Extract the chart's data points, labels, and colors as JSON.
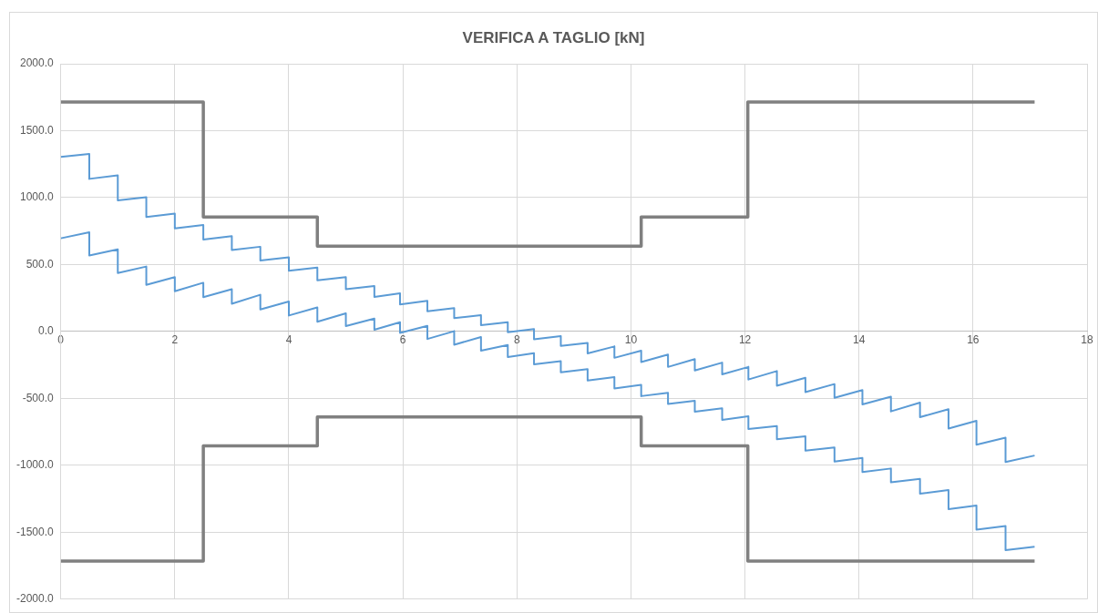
{
  "chart_data": {
    "type": "line",
    "title": "VERIFICA A TAGLIO [kN]",
    "marker": "none",
    "line_style": "solid",
    "grid": true,
    "legend": false,
    "xlim": [
      0,
      18
    ],
    "xticks": [
      0,
      2,
      4,
      6,
      8,
      10,
      12,
      14,
      16,
      18
    ],
    "ylim": [
      -2000,
      2000
    ],
    "yticks": [
      {
        "value": -2000,
        "label": "-2000.0"
      },
      {
        "value": -1500,
        "label": "-1500.0"
      },
      {
        "value": -1000,
        "label": "-1000.0"
      },
      {
        "value": -500,
        "label": "-500.0"
      },
      {
        "value": 0,
        "label": "0.0"
      },
      {
        "value": 500,
        "label": "500.0"
      },
      {
        "value": 1000,
        "label": "1000.0"
      },
      {
        "value": 1500,
        "label": "1500.0"
      },
      {
        "value": 2000,
        "label": "2000.0"
      }
    ],
    "series": [
      {
        "color": "#5b9bd5",
        "x": [
          0,
          0.5,
          0.5,
          1,
          1,
          1.5,
          1.5,
          2,
          2,
          2.5,
          2.5,
          3,
          3,
          3.5,
          3.5,
          4,
          4,
          4.5,
          4.5,
          5,
          5,
          5.5,
          5.5,
          5.95,
          5.95,
          6.43,
          6.43,
          6.9,
          6.9,
          7.37,
          7.37,
          7.84,
          7.84,
          8.3,
          8.3,
          8.77,
          8.77,
          9.24,
          9.24,
          9.71,
          9.71,
          10.18,
          10.18,
          10.65,
          10.65,
          11.12,
          11.12,
          11.6,
          11.6,
          12.06,
          12.06,
          12.56,
          12.56,
          13.06,
          13.06,
          13.57,
          13.57,
          14.06,
          14.06,
          14.56,
          14.56,
          15.07,
          15.07,
          15.57,
          15.57,
          16.06,
          16.06,
          16.57,
          16.57,
          17.08
        ],
        "values": [
          1304,
          1327,
          1140,
          1167,
          979,
          1003,
          855,
          880,
          770,
          795,
          687,
          712,
          608,
          633,
          530,
          554,
          453,
          478,
          382,
          406,
          316,
          339,
          258,
          285,
          202,
          229,
          150,
          175,
          99,
          121,
          47,
          69,
          -5,
          18,
          -59,
          -34,
          -108,
          -85,
          -164,
          -112,
          -197,
          -144,
          -229,
          -173,
          -265,
          -206,
          -292,
          -233,
          -321,
          -265,
          -359,
          -296,
          -406,
          -346,
          -453,
          -393,
          -496,
          -438,
          -545,
          -487,
          -597,
          -532,
          -640,
          -581,
          -725,
          -667,
          -846,
          -793,
          -976,
          -927
        ]
      },
      {
        "color": "#5b9bd5",
        "x": [
          0,
          0.5,
          0.5,
          1,
          1,
          1.5,
          1.5,
          2,
          2,
          2.5,
          2.5,
          3,
          3,
          3.5,
          3.5,
          4,
          4,
          4.5,
          4.5,
          5,
          5,
          5.5,
          5.5,
          5.95,
          5.95,
          6.43,
          6.43,
          6.9,
          6.9,
          7.37,
          7.37,
          7.84,
          7.84,
          8.3,
          8.3,
          8.77,
          8.77,
          9.24,
          9.24,
          9.71,
          9.71,
          10.18,
          10.18,
          10.65,
          10.65,
          11.12,
          11.12,
          11.6,
          11.6,
          12.06,
          12.06,
          12.56,
          12.56,
          13.06,
          13.06,
          13.57,
          13.57,
          14.06,
          14.06,
          14.56,
          14.56,
          15.07,
          15.07,
          15.57,
          15.57,
          16.06,
          16.06,
          16.57,
          16.57,
          17.08
        ],
        "values": [
          696,
          741,
          568,
          613,
          436,
          485,
          348,
          406,
          301,
          364,
          256,
          316,
          207,
          274,
          164,
          224,
          119,
          180,
          72,
          135,
          40,
          96,
          13,
          69,
          -11,
          42,
          -56,
          2,
          -99,
          -42,
          -144,
          -101,
          -191,
          -162,
          -245,
          -222,
          -305,
          -281,
          -366,
          -341,
          -426,
          -399,
          -483,
          -458,
          -541,
          -518,
          -599,
          -574,
          -660,
          -633,
          -729,
          -707,
          -806,
          -783,
          -891,
          -867,
          -972,
          -945,
          -1050,
          -1024,
          -1127,
          -1102,
          -1212,
          -1185,
          -1327,
          -1300,
          -1481,
          -1453,
          -1634,
          -1609
        ]
      },
      {
        "color": "#808080",
        "x": [
          0,
          2.5,
          2.5,
          4.5,
          4.5,
          10.18,
          10.18,
          12.05,
          12.05,
          17.08
        ],
        "values": [
          1715,
          1715,
          855,
          855,
          638,
          638,
          855,
          855,
          1715,
          1715
        ]
      },
      {
        "color": "#808080",
        "x": [
          0,
          2.5,
          2.5,
          4.5,
          4.5,
          10.18,
          10.18,
          12.05,
          12.05,
          17.08
        ],
        "values": [
          -1715,
          -1715,
          -855,
          -855,
          -638,
          -638,
          -855,
          -855,
          -1715,
          -1715
        ]
      }
    ]
  }
}
